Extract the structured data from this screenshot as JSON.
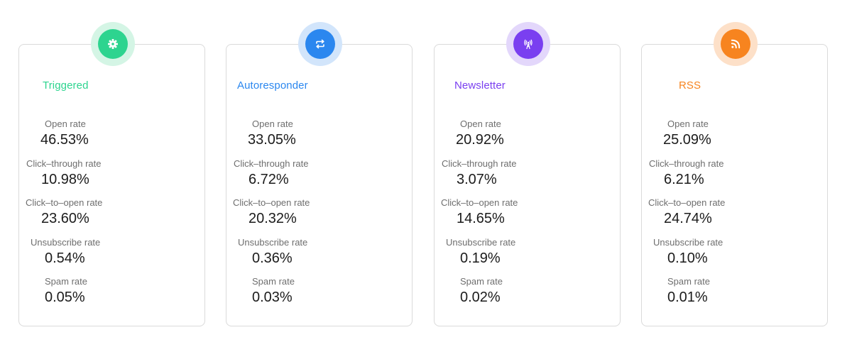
{
  "cards": [
    {
      "title": "Triggered",
      "icon": "gear-icon",
      "accent": "#2dd48f",
      "halo": "#d4f5e5",
      "metrics": [
        {
          "label": "Open rate",
          "value": "46.53%"
        },
        {
          "label": "Click–through rate",
          "value": "10.98%"
        },
        {
          "label": "Click–to–open rate",
          "value": "23.60%"
        },
        {
          "label": "Unsubscribe rate",
          "value": "0.54%"
        },
        {
          "label": "Spam rate",
          "value": "0.05%"
        }
      ]
    },
    {
      "title": "Autoresponder",
      "icon": "repeat-icon",
      "accent": "#2b87ef",
      "halo": "#d2e5fb",
      "metrics": [
        {
          "label": "Open rate",
          "value": "33.05%"
        },
        {
          "label": "Click–through rate",
          "value": "6.72%"
        },
        {
          "label": "Click–to–open rate",
          "value": "20.32%"
        },
        {
          "label": "Unsubscribe rate",
          "value": "0.36%"
        },
        {
          "label": "Spam rate",
          "value": "0.03%"
        }
      ]
    },
    {
      "title": "Newsletter",
      "icon": "broadcast-tower-icon",
      "accent": "#7a3ff0",
      "halo": "#e3d7fb",
      "metrics": [
        {
          "label": "Open rate",
          "value": "20.92%"
        },
        {
          "label": "Click–through rate",
          "value": "3.07%"
        },
        {
          "label": "Click–to–open rate",
          "value": "14.65%"
        },
        {
          "label": "Unsubscribe rate",
          "value": "0.19%"
        },
        {
          "label": "Spam rate",
          "value": "0.02%"
        }
      ]
    },
    {
      "title": "RSS",
      "icon": "rss-icon",
      "accent": "#f7841f",
      "halo": "#fde0c8",
      "metrics": [
        {
          "label": "Open rate",
          "value": "25.09%"
        },
        {
          "label": "Click–through rate",
          "value": "6.21%"
        },
        {
          "label": "Click–to–open rate",
          "value": "24.74%"
        },
        {
          "label": "Unsubscribe rate",
          "value": "0.10%"
        },
        {
          "label": "Spam rate",
          "value": "0.01%"
        }
      ]
    }
  ]
}
